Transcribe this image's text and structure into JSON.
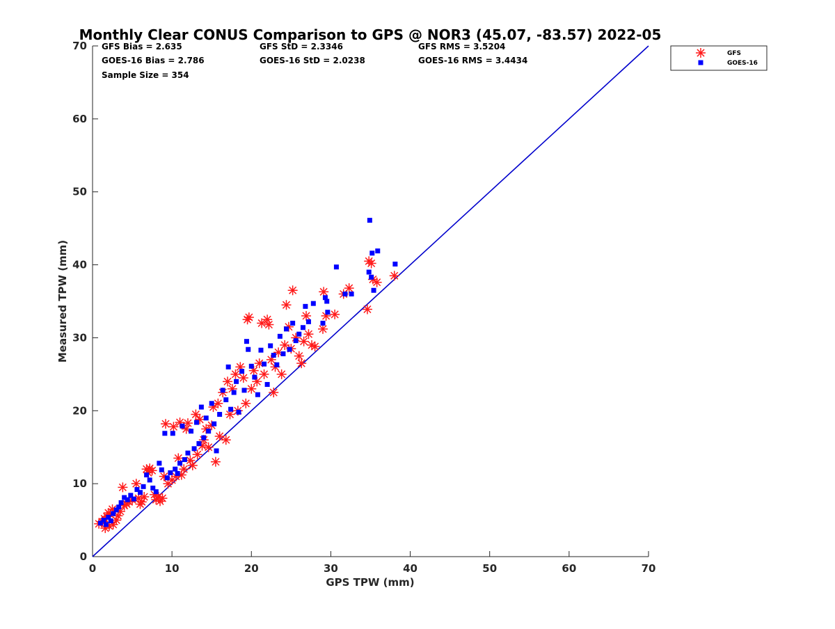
{
  "chart_data": {
    "type": "scatter",
    "title": "Monthly Clear CONUS Comparison to GPS @ NOR3 (45.07, -83.57) 2022-05",
    "xlabel": "GPS TPW (mm)",
    "ylabel": "Measured TPW (mm)",
    "xlim": [
      0,
      70
    ],
    "ylim": [
      0,
      70
    ],
    "xticks": [
      0,
      10,
      20,
      30,
      40,
      50,
      60,
      70
    ],
    "yticks": [
      0,
      10,
      20,
      30,
      40,
      50,
      60,
      70
    ],
    "grid": false,
    "legend_position": "top-right outside",
    "stats": [
      [
        "GFS Bias = 2.635",
        "GFS StD = 2.3346",
        "GFS RMS = 3.5204"
      ],
      [
        "GOES-16 Bias = 2.786",
        "GOES-16 StD = 2.0238",
        "GOES-16 RMS = 3.4434"
      ],
      [
        "Sample Size = 354"
      ]
    ],
    "reference_line": {
      "name": "1:1 line",
      "color": "#0000cc",
      "x": [
        0,
        70
      ],
      "y": [
        0,
        70
      ]
    },
    "series": [
      {
        "name": "GFS",
        "marker": "asterisk",
        "color": "#ff1a1a",
        "points": [
          [
            0.8,
            4.5
          ],
          [
            1.2,
            4.8
          ],
          [
            1.5,
            5.2
          ],
          [
            1.8,
            5.5
          ],
          [
            2.0,
            6.0
          ],
          [
            2.2,
            5.8
          ],
          [
            2.5,
            6.5
          ],
          [
            1.6,
            3.9
          ],
          [
            2.1,
            4.2
          ],
          [
            2.6,
            4.4
          ],
          [
            3.0,
            5.0
          ],
          [
            3.2,
            5.6
          ],
          [
            3.5,
            6.2
          ],
          [
            3.8,
            9.5
          ],
          [
            4.0,
            7.0
          ],
          [
            4.3,
            7.2
          ],
          [
            4.6,
            7.5
          ],
          [
            5.0,
            7.8
          ],
          [
            5.5,
            10.0
          ],
          [
            5.8,
            8.0
          ],
          [
            6.0,
            7.2
          ],
          [
            6.2,
            7.5
          ],
          [
            6.5,
            8.2
          ],
          [
            6.8,
            12.0
          ],
          [
            7.0,
            11.5
          ],
          [
            7.2,
            12.1
          ],
          [
            7.5,
            11.8
          ],
          [
            7.8,
            8.5
          ],
          [
            8.0,
            7.8
          ],
          [
            8.3,
            8.2
          ],
          [
            8.5,
            7.6
          ],
          [
            8.8,
            8.0
          ],
          [
            9.0,
            11.0
          ],
          [
            9.2,
            18.2
          ],
          [
            9.5,
            10.0
          ],
          [
            10.0,
            10.5
          ],
          [
            10.2,
            17.8
          ],
          [
            10.5,
            11.0
          ],
          [
            10.8,
            13.5
          ],
          [
            11.0,
            18.4
          ],
          [
            11.2,
            11.2
          ],
          [
            11.5,
            12.0
          ],
          [
            11.8,
            17.5
          ],
          [
            12.0,
            18.3
          ],
          [
            12.3,
            13.2
          ],
          [
            12.6,
            12.5
          ],
          [
            13.0,
            19.5
          ],
          [
            13.2,
            14.0
          ],
          [
            13.5,
            18.8
          ],
          [
            13.8,
            15.2
          ],
          [
            14.0,
            16.0
          ],
          [
            14.3,
            17.5
          ],
          [
            14.6,
            15.0
          ],
          [
            15.0,
            18.0
          ],
          [
            15.2,
            20.5
          ],
          [
            15.5,
            13.0
          ],
          [
            15.8,
            21.0
          ],
          [
            16.0,
            16.5
          ],
          [
            16.4,
            22.5
          ],
          [
            16.8,
            16.0
          ],
          [
            17.0,
            24.0
          ],
          [
            17.3,
            19.5
          ],
          [
            17.6,
            23.0
          ],
          [
            18.0,
            25.0
          ],
          [
            18.3,
            20.0
          ],
          [
            18.6,
            26.0
          ],
          [
            19.0,
            24.5
          ],
          [
            19.3,
            21.0
          ],
          [
            19.5,
            32.5
          ],
          [
            19.7,
            32.8
          ],
          [
            20.0,
            23.0
          ],
          [
            20.3,
            25.5
          ],
          [
            20.7,
            24.0
          ],
          [
            21.0,
            26.5
          ],
          [
            21.3,
            32.0
          ],
          [
            21.6,
            25.0
          ],
          [
            22.0,
            32.5
          ],
          [
            22.2,
            31.8
          ],
          [
            22.5,
            27.0
          ],
          [
            22.8,
            22.5
          ],
          [
            23.0,
            26.0
          ],
          [
            23.4,
            28.0
          ],
          [
            23.8,
            25.0
          ],
          [
            24.2,
            29.0
          ],
          [
            24.4,
            34.5
          ],
          [
            24.7,
            31.5
          ],
          [
            25.0,
            28.5
          ],
          [
            25.2,
            36.5
          ],
          [
            25.6,
            30.0
          ],
          [
            26.0,
            27.5
          ],
          [
            26.3,
            26.5
          ],
          [
            26.6,
            29.5
          ],
          [
            26.9,
            33.0
          ],
          [
            27.2,
            30.5
          ],
          [
            27.6,
            29.0
          ],
          [
            28.0,
            28.8
          ],
          [
            29.0,
            31.2
          ],
          [
            29.1,
            36.3
          ],
          [
            29.4,
            33.0
          ],
          [
            30.5,
            33.2
          ],
          [
            31.6,
            36.0
          ],
          [
            32.3,
            36.8
          ],
          [
            34.6,
            33.9
          ],
          [
            34.8,
            40.5
          ],
          [
            35.1,
            40.2
          ],
          [
            35.3,
            38.0
          ],
          [
            35.8,
            37.6
          ],
          [
            38.0,
            38.5
          ]
        ]
      },
      {
        "name": "GOES-16",
        "marker": "square",
        "color": "#0000ff",
        "points": [
          [
            1.0,
            4.6
          ],
          [
            1.4,
            5.0
          ],
          [
            1.7,
            4.4
          ],
          [
            2.0,
            5.4
          ],
          [
            2.3,
            4.9
          ],
          [
            2.6,
            5.9
          ],
          [
            3.0,
            6.4
          ],
          [
            3.3,
            6.8
          ],
          [
            3.6,
            7.4
          ],
          [
            4.0,
            8.1
          ],
          [
            4.4,
            7.8
          ],
          [
            4.8,
            8.4
          ],
          [
            5.2,
            7.9
          ],
          [
            5.6,
            9.2
          ],
          [
            6.0,
            8.8
          ],
          [
            6.4,
            9.6
          ],
          [
            6.8,
            11.2
          ],
          [
            7.2,
            10.5
          ],
          [
            7.6,
            9.4
          ],
          [
            8.0,
            8.9
          ],
          [
            8.4,
            12.8
          ],
          [
            8.7,
            11.9
          ],
          [
            9.1,
            16.9
          ],
          [
            9.4,
            10.8
          ],
          [
            9.8,
            11.5
          ],
          [
            10.1,
            16.9
          ],
          [
            10.4,
            12.0
          ],
          [
            10.7,
            11.4
          ],
          [
            11.0,
            12.8
          ],
          [
            11.3,
            17.9
          ],
          [
            11.6,
            13.3
          ],
          [
            12.0,
            14.2
          ],
          [
            12.4,
            17.2
          ],
          [
            12.8,
            14.8
          ],
          [
            13.1,
            18.4
          ],
          [
            13.4,
            15.5
          ],
          [
            13.7,
            20.5
          ],
          [
            14.0,
            16.3
          ],
          [
            14.3,
            19.0
          ],
          [
            14.6,
            17.2
          ],
          [
            15.0,
            21.0
          ],
          [
            15.3,
            18.2
          ],
          [
            15.6,
            14.5
          ],
          [
            16.0,
            19.5
          ],
          [
            16.4,
            22.8
          ],
          [
            16.8,
            21.5
          ],
          [
            17.1,
            26.0
          ],
          [
            17.4,
            20.2
          ],
          [
            17.8,
            22.5
          ],
          [
            18.1,
            24.0
          ],
          [
            18.4,
            19.8
          ],
          [
            18.8,
            25.4
          ],
          [
            19.1,
            22.8
          ],
          [
            19.4,
            29.5
          ],
          [
            19.6,
            28.4
          ],
          [
            20.0,
            26.1
          ],
          [
            20.4,
            24.6
          ],
          [
            20.8,
            22.2
          ],
          [
            21.2,
            28.3
          ],
          [
            21.6,
            26.4
          ],
          [
            22.0,
            23.6
          ],
          [
            22.4,
            28.9
          ],
          [
            22.8,
            27.6
          ],
          [
            23.2,
            26.3
          ],
          [
            23.6,
            30.2
          ],
          [
            24.0,
            27.8
          ],
          [
            24.4,
            31.2
          ],
          [
            24.8,
            28.4
          ],
          [
            25.2,
            32.0
          ],
          [
            25.6,
            29.6
          ],
          [
            26.0,
            30.5
          ],
          [
            26.5,
            31.4
          ],
          [
            26.8,
            34.3
          ],
          [
            27.2,
            32.2
          ],
          [
            27.8,
            34.7
          ],
          [
            29.0,
            32.0
          ],
          [
            29.3,
            35.5
          ],
          [
            29.5,
            35.0
          ],
          [
            29.6,
            33.5
          ],
          [
            30.7,
            39.7
          ],
          [
            31.8,
            36.0
          ],
          [
            32.6,
            36.0
          ],
          [
            34.8,
            39.0
          ],
          [
            34.9,
            46.1
          ],
          [
            35.1,
            38.3
          ],
          [
            35.2,
            41.6
          ],
          [
            35.4,
            36.5
          ],
          [
            35.9,
            41.9
          ],
          [
            38.1,
            40.1
          ]
        ]
      }
    ]
  }
}
